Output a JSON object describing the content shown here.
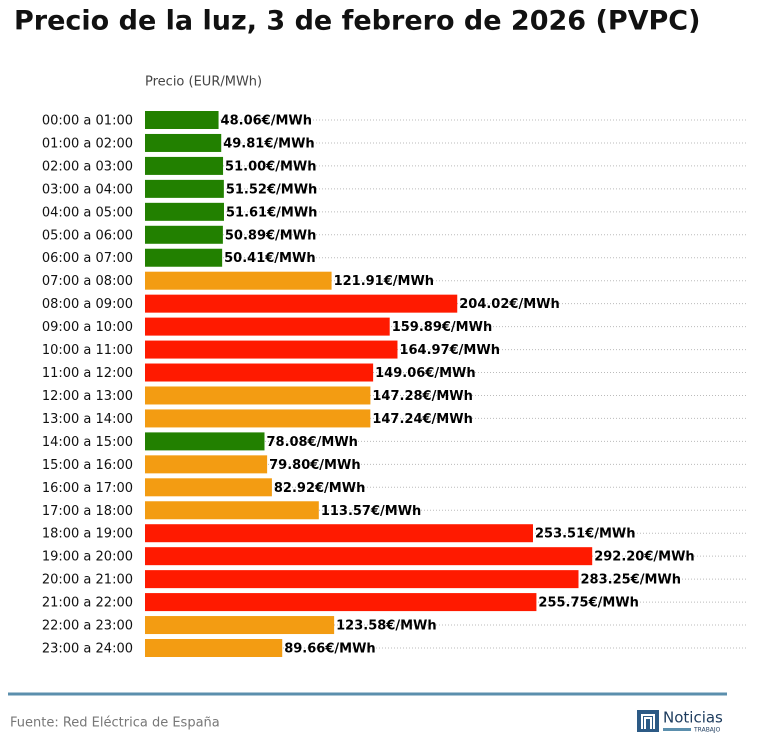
{
  "chart_data": {
    "type": "hbar",
    "title": "Precio de la luz, 3 de febrero de 2026 (PVPC)",
    "x_label": "Precio (EUR/MWh)",
    "categories": [
      "00:00 a 01:00",
      "01:00 a 02:00",
      "02:00 a 03:00",
      "03:00 a 04:00",
      "04:00 a 05:00",
      "05:00 a 06:00",
      "06:00 a 07:00",
      "07:00 a 08:00",
      "08:00 a 09:00",
      "09:00 a 10:00",
      "10:00 a 11:00",
      "11:00 a 12:00",
      "12:00 a 13:00",
      "13:00 a 14:00",
      "14:00 a 15:00",
      "15:00 a 16:00",
      "16:00 a 17:00",
      "17:00 a 18:00",
      "18:00 a 19:00",
      "19:00 a 20:00",
      "20:00 a 21:00",
      "21:00 a 22:00",
      "22:00 a 23:00",
      "23:00 a 24:00"
    ],
    "values": [
      48.06,
      49.81,
      51.0,
      51.52,
      51.61,
      50.89,
      50.41,
      121.91,
      204.02,
      159.89,
      164.97,
      149.06,
      147.28,
      147.24,
      78.08,
      79.8,
      82.92,
      113.57,
      253.51,
      292.2,
      283.25,
      255.75,
      123.58,
      89.66
    ],
    "value_labels": [
      "48.06€/MWh",
      "49.81€/MWh",
      "51.00€/MWh",
      "51.52€/MWh",
      "51.61€/MWh",
      "50.89€/MWh",
      "50.41€/MWh",
      "121.91€/MWh",
      "204.02€/MWh",
      "159.89€/MWh",
      "164.97€/MWh",
      "149.06€/MWh",
      "147.28€/MWh",
      "147.24€/MWh",
      "78.08€/MWh",
      "79.80€/MWh",
      "82.92€/MWh",
      "113.57€/MWh",
      "253.51€/MWh",
      "292.20€/MWh",
      "283.25€/MWh",
      "255.75€/MWh",
      "123.58€/MWh",
      "89.66€/MWh"
    ],
    "colors": [
      "#228000",
      "#228000",
      "#228000",
      "#228000",
      "#228000",
      "#228000",
      "#228000",
      "#f39c12",
      "#ff1a00",
      "#ff1a00",
      "#ff1a00",
      "#ff1a00",
      "#f39c12",
      "#f39c12",
      "#228000",
      "#f39c12",
      "#f39c12",
      "#f39c12",
      "#ff1a00",
      "#ff1a00",
      "#ff1a00",
      "#ff1a00",
      "#f39c12",
      "#f39c12"
    ],
    "xlim": [
      0,
      394
    ]
  },
  "footer": {
    "source": "Fuente: Red Eléctrica de España",
    "logo": "Noticias",
    "logo_sub": "TRABAJO"
  }
}
